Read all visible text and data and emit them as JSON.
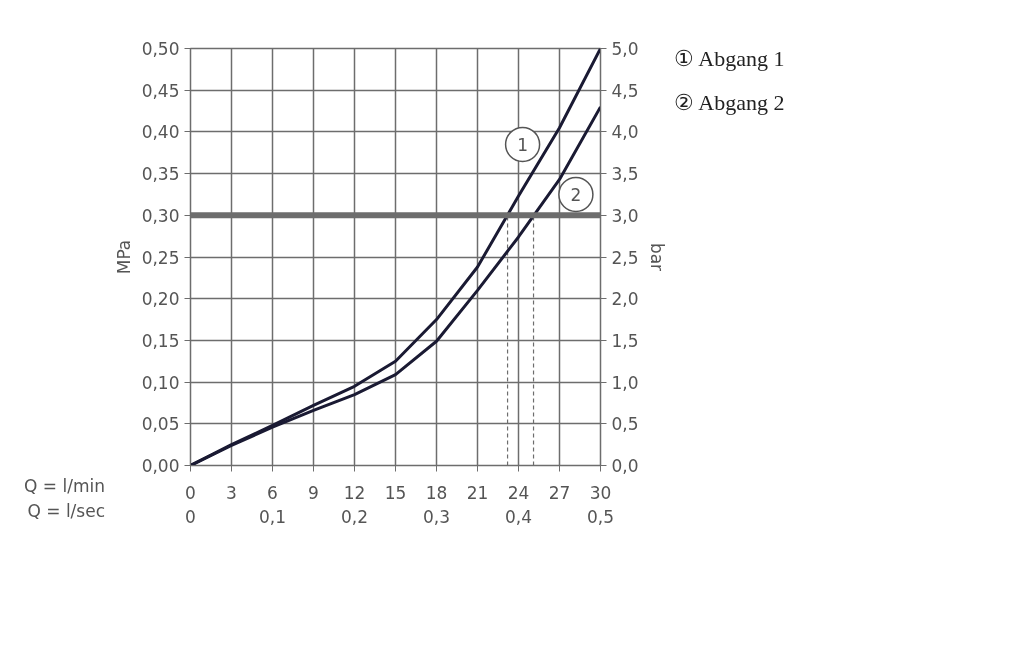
{
  "chart_data": {
    "type": "line",
    "xlabel": "Q = l/min",
    "x2label": "Q = l/sec",
    "ylabel": "MPa",
    "y2label": "bar",
    "xlim": [
      0,
      30
    ],
    "xticks": [
      0,
      3,
      6,
      9,
      12,
      15,
      18,
      21,
      24,
      27,
      30
    ],
    "x2lim": [
      0,
      0.5
    ],
    "x2ticks": [
      0,
      {
        "value": 0.1,
        "label": "0,1"
      },
      {
        "value": 0.2,
        "label": "0,2"
      },
      {
        "value": 0.3,
        "label": "0,3"
      },
      {
        "value": 0.4,
        "label": "0,4"
      },
      {
        "value": 0.5,
        "label": "0,5"
      }
    ],
    "ylim": [
      0,
      0.5
    ],
    "yticks": [
      {
        "value": 0,
        "label": "0,00"
      },
      {
        "value": 0.05,
        "label": "0,05"
      },
      {
        "value": 0.1,
        "label": "0,10"
      },
      {
        "value": 0.15,
        "label": "0,15"
      },
      {
        "value": 0.2,
        "label": "0,20"
      },
      {
        "value": 0.25,
        "label": "0,25"
      },
      {
        "value": 0.3,
        "label": "0,30"
      },
      {
        "value": 0.35,
        "label": "0,35"
      },
      {
        "value": 0.4,
        "label": "0,40"
      },
      {
        "value": 0.45,
        "label": "0,45"
      },
      {
        "value": 0.5,
        "label": "0,50"
      }
    ],
    "y2lim": [
      0,
      5
    ],
    "y2ticks": [
      {
        "value": 0,
        "label": "0,0"
      },
      {
        "value": 0.5,
        "label": "0,5"
      },
      {
        "value": 1,
        "label": "1,0"
      },
      {
        "value": 1.5,
        "label": "1,5"
      },
      {
        "value": 2,
        "label": "2,0"
      },
      {
        "value": 2.5,
        "label": "2,5"
      },
      {
        "value": 3,
        "label": "3,0"
      },
      {
        "value": 3.5,
        "label": "3,5"
      },
      {
        "value": 4,
        "label": "4,0"
      },
      {
        "value": 4.5,
        "label": "4,5"
      },
      {
        "value": 5,
        "label": "5,0"
      }
    ],
    "x": [
      0,
      3,
      6,
      9,
      12,
      15,
      18,
      21,
      24,
      27,
      30
    ],
    "series": [
      {
        "name": "① Abgang 1",
        "color": "#1a1a33",
        "values": [
          0,
          0.025,
          0.048,
          0.072,
          0.095,
          0.125,
          0.175,
          0.238,
          0.323,
          0.405,
          0.5
        ]
      },
      {
        "name": "② Abgang 2",
        "color": "#1a1a33",
        "values": [
          0,
          0.024,
          0.046,
          0.066,
          0.085,
          0.109,
          0.149,
          0.21,
          0.274,
          0.343,
          0.43
        ]
      }
    ],
    "ref_lines": [
      {
        "axis": "y",
        "value": 0.3,
        "color": "#6d6d6d"
      },
      {
        "axis": "x",
        "value": 23.2,
        "color": "#6d6d6d",
        "line_style": "dashed"
      },
      {
        "axis": "x",
        "value": 25.1,
        "color": "#6d6d6d",
        "line_style": "dashed"
      }
    ],
    "annotations": [
      {
        "text": "1",
        "x": 24.3,
        "y": 0.385
      },
      {
        "text": "2",
        "x": 28.2,
        "y": 0.325
      }
    ],
    "grid": true,
    "legend": "right",
    "line_style": "solid"
  }
}
